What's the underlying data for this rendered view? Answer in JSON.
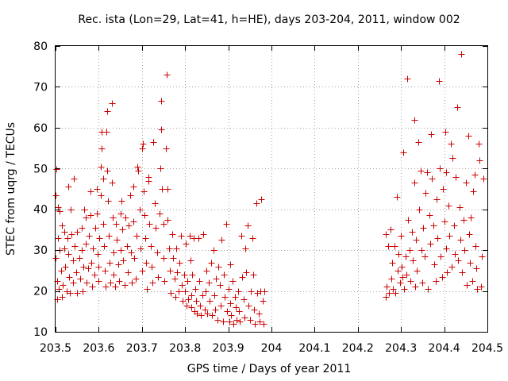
{
  "chart_data": {
    "type": "scatter",
    "title": "Rec. ista (Lon=29, Lat=41, h=HE), days 203-204, 2011, window 002",
    "xlabel": "GPS time / Days of year 2011",
    "ylabel": "STEC from uqrg / TECUs",
    "xlim": [
      203.5,
      204.5
    ],
    "ylim": [
      10,
      80
    ],
    "xticks": [
      203.5,
      203.6,
      203.7,
      203.8,
      203.9,
      204.0,
      204.1,
      204.2,
      204.3,
      204.4,
      204.5
    ],
    "xtick_labels": [
      "203.5",
      "203.6",
      "203.7",
      "203.8",
      "203.9",
      "204",
      "204.1",
      "204.2",
      "204.3",
      "204.4",
      "204.5"
    ],
    "yticks": [
      10,
      20,
      30,
      40,
      50,
      60,
      70,
      80
    ],
    "ytick_labels": [
      "10",
      "20",
      "30",
      "40",
      "50",
      "60",
      "70",
      "80"
    ],
    "grid": true,
    "marker": "+",
    "color": "#cc0000",
    "points": [
      [
        203.5,
        43.5
      ],
      [
        203.5,
        28.0
      ],
      [
        203.502,
        49.8
      ],
      [
        203.503,
        22.5
      ],
      [
        203.504,
        18.0
      ],
      [
        203.505,
        40.5
      ],
      [
        203.505,
        33.0
      ],
      [
        203.507,
        20.5
      ],
      [
        203.51,
        39.5
      ],
      [
        203.51,
        30.0
      ],
      [
        203.512,
        25.0
      ],
      [
        203.514,
        18.5
      ],
      [
        203.515,
        36.0
      ],
      [
        203.517,
        21.5
      ],
      [
        203.52,
        34.5
      ],
      [
        203.52,
        30.5
      ],
      [
        203.522,
        26.0
      ],
      [
        203.525,
        20.0
      ],
      [
        203.527,
        33.0
      ],
      [
        203.53,
        45.5
      ],
      [
        203.53,
        29.0
      ],
      [
        203.532,
        23.5
      ],
      [
        203.534,
        19.5
      ],
      [
        203.535,
        40.0
      ],
      [
        203.537,
        34.0
      ],
      [
        203.54,
        27.5
      ],
      [
        203.54,
        22.0
      ],
      [
        203.542,
        47.5
      ],
      [
        203.545,
        31.0
      ],
      [
        203.547,
        24.5
      ],
      [
        203.55,
        19.5
      ],
      [
        203.55,
        34.5
      ],
      [
        203.555,
        28.0
      ],
      [
        203.557,
        23.0
      ],
      [
        203.56,
        35.5
      ],
      [
        203.56,
        30.0
      ],
      [
        203.562,
        20.0
      ],
      [
        203.565,
        26.0
      ],
      [
        203.567,
        40.0
      ],
      [
        203.57,
        38.0
      ],
      [
        203.57,
        31.5
      ],
      [
        203.572,
        22.0
      ],
      [
        203.575,
        25.5
      ],
      [
        203.577,
        33.5
      ],
      [
        203.58,
        38.5
      ],
      [
        203.58,
        44.5
      ],
      [
        203.582,
        27.0
      ],
      [
        203.585,
        21.0
      ],
      [
        203.587,
        30.5
      ],
      [
        203.59,
        24.0
      ],
      [
        203.592,
        35.5
      ],
      [
        203.595,
        45.0
      ],
      [
        203.595,
        39.0
      ],
      [
        203.597,
        29.0
      ],
      [
        203.6,
        22.5
      ],
      [
        203.6,
        26.0
      ],
      [
        203.602,
        33.0
      ],
      [
        203.604,
        43.5
      ],
      [
        203.605,
        50.5
      ],
      [
        203.607,
        55.0
      ],
      [
        203.607,
        59.0
      ],
      [
        203.61,
        47.5
      ],
      [
        203.61,
        36.5
      ],
      [
        203.612,
        31.0
      ],
      [
        203.614,
        25.0
      ],
      [
        203.615,
        21.0
      ],
      [
        203.617,
        59.0
      ],
      [
        203.62,
        64.0
      ],
      [
        203.62,
        49.5
      ],
      [
        203.622,
        42.0
      ],
      [
        203.624,
        33.5
      ],
      [
        203.625,
        27.0
      ],
      [
        203.627,
        22.0
      ],
      [
        203.63,
        66.0
      ],
      [
        203.63,
        46.5
      ],
      [
        203.632,
        38.0
      ],
      [
        203.634,
        29.5
      ],
      [
        203.635,
        24.0
      ],
      [
        203.637,
        21.0
      ],
      [
        203.64,
        36.5
      ],
      [
        203.642,
        32.5
      ],
      [
        203.645,
        26.5
      ],
      [
        203.647,
        22.5
      ],
      [
        203.65,
        39.0
      ],
      [
        203.65,
        30.0
      ],
      [
        203.652,
        42.0
      ],
      [
        203.655,
        35.0
      ],
      [
        203.657,
        27.5
      ],
      [
        203.66,
        21.5
      ],
      [
        203.662,
        38.0
      ],
      [
        203.665,
        31.0
      ],
      [
        203.667,
        24.5
      ],
      [
        203.67,
        36.0
      ],
      [
        203.672,
        43.5
      ],
      [
        203.675,
        29.5
      ],
      [
        203.677,
        22.0
      ],
      [
        203.68,
        45.5
      ],
      [
        203.68,
        37.0
      ],
      [
        203.682,
        28.0
      ],
      [
        203.685,
        23.0
      ],
      [
        203.687,
        33.5
      ],
      [
        203.69,
        50.5
      ],
      [
        203.692,
        49.5
      ],
      [
        203.695,
        40.0
      ],
      [
        203.697,
        30.5
      ],
      [
        203.7,
        25.0
      ],
      [
        203.7,
        55.0
      ],
      [
        203.702,
        56.0
      ],
      [
        203.704,
        44.5
      ],
      [
        203.705,
        38.5
      ],
      [
        203.707,
        33.0
      ],
      [
        203.71,
        27.0
      ],
      [
        203.712,
        20.5
      ],
      [
        203.715,
        48.0
      ],
      [
        203.715,
        47.0
      ],
      [
        203.717,
        36.5
      ],
      [
        203.72,
        31.0
      ],
      [
        203.722,
        26.0
      ],
      [
        203.725,
        22.0
      ],
      [
        203.727,
        56.5
      ],
      [
        203.73,
        41.5
      ],
      [
        203.732,
        35.5
      ],
      [
        203.735,
        29.5
      ],
      [
        203.737,
        23.5
      ],
      [
        203.74,
        39.0
      ],
      [
        203.742,
        50.0
      ],
      [
        203.744,
        66.5
      ],
      [
        203.745,
        59.5
      ],
      [
        203.747,
        45.0
      ],
      [
        203.75,
        36.5
      ],
      [
        203.75,
        28.0
      ],
      [
        203.752,
        22.5
      ],
      [
        203.755,
        55.0
      ],
      [
        203.757,
        73.0
      ],
      [
        203.76,
        45.0
      ],
      [
        203.76,
        37.5
      ],
      [
        203.762,
        30.5
      ],
      [
        203.765,
        25.0
      ],
      [
        203.767,
        19.5
      ],
      [
        203.77,
        34.0
      ],
      [
        203.772,
        28.0
      ],
      [
        203.775,
        23.0
      ],
      [
        203.777,
        18.5
      ],
      [
        203.78,
        30.5
      ],
      [
        203.782,
        24.5
      ],
      [
        203.785,
        20.0
      ],
      [
        203.787,
        27.0
      ],
      [
        203.79,
        33.5
      ],
      [
        203.792,
        21.5
      ],
      [
        203.795,
        17.5
      ],
      [
        203.797,
        24.0
      ],
      [
        203.8,
        20.0
      ],
      [
        203.802,
        31.5
      ],
      [
        203.804,
        16.5
      ],
      [
        203.805,
        22.5
      ],
      [
        203.807,
        18.0
      ],
      [
        203.81,
        33.5
      ],
      [
        203.812,
        27.5
      ],
      [
        203.814,
        19.0
      ],
      [
        203.815,
        16.0
      ],
      [
        203.817,
        24.0
      ],
      [
        203.82,
        33.0
      ],
      [
        203.822,
        15.0
      ],
      [
        203.824,
        20.5
      ],
      [
        203.825,
        17.5
      ],
      [
        203.827,
        14.5
      ],
      [
        203.83,
        33.0
      ],
      [
        203.832,
        22.5
      ],
      [
        203.835,
        16.5
      ],
      [
        203.837,
        14.0
      ],
      [
        203.84,
        19.0
      ],
      [
        203.842,
        34.0
      ],
      [
        203.845,
        15.5
      ],
      [
        203.847,
        20.0
      ],
      [
        203.85,
        25.0
      ],
      [
        203.852,
        14.5
      ],
      [
        203.855,
        22.0
      ],
      [
        203.857,
        17.5
      ],
      [
        203.86,
        27.0
      ],
      [
        203.862,
        14.0
      ],
      [
        203.865,
        30.0
      ],
      [
        203.867,
        19.0
      ],
      [
        203.87,
        15.5
      ],
      [
        203.872,
        23.0
      ],
      [
        203.875,
        13.0
      ],
      [
        203.877,
        26.0
      ],
      [
        203.88,
        21.5
      ],
      [
        203.882,
        16.5
      ],
      [
        203.885,
        32.5
      ],
      [
        203.887,
        12.5
      ],
      [
        203.89,
        24.0
      ],
      [
        203.892,
        18.5
      ],
      [
        203.895,
        36.5
      ],
      [
        203.897,
        15.0
      ],
      [
        203.9,
        20.5
      ],
      [
        203.902,
        12.5
      ],
      [
        203.904,
        26.5
      ],
      [
        203.905,
        17.0
      ],
      [
        203.907,
        14.0
      ],
      [
        203.91,
        22.5
      ],
      [
        203.912,
        12.0
      ],
      [
        203.915,
        18.5
      ],
      [
        203.917,
        16.0
      ],
      [
        203.92,
        13.0
      ],
      [
        203.922,
        20.0
      ],
      [
        203.925,
        15.0
      ],
      [
        203.927,
        12.5
      ],
      [
        203.93,
        33.5
      ],
      [
        203.932,
        23.5
      ],
      [
        203.935,
        18.0
      ],
      [
        203.937,
        13.5
      ],
      [
        203.94,
        30.5
      ],
      [
        203.942,
        24.5
      ],
      [
        203.945,
        36.0
      ],
      [
        203.947,
        16.5
      ],
      [
        203.95,
        13.0
      ],
      [
        203.952,
        20.0
      ],
      [
        203.955,
        33.0
      ],
      [
        203.957,
        24.0
      ],
      [
        203.96,
        15.5
      ],
      [
        203.962,
        12.0
      ],
      [
        203.965,
        41.5
      ],
      [
        203.967,
        19.5
      ],
      [
        203.97,
        14.5
      ],
      [
        203.972,
        12.5
      ],
      [
        203.975,
        20.0
      ],
      [
        203.977,
        42.5
      ],
      [
        203.98,
        17.5
      ],
      [
        203.982,
        12.0
      ],
      [
        203.984,
        20.0
      ],
      [
        204.265,
        34.0
      ],
      [
        204.265,
        18.5
      ],
      [
        204.267,
        21.0
      ],
      [
        204.27,
        31.0
      ],
      [
        204.272,
        19.5
      ],
      [
        204.275,
        35.0
      ],
      [
        204.277,
        23.0
      ],
      [
        204.28,
        27.0
      ],
      [
        204.282,
        20.5
      ],
      [
        204.285,
        31.0
      ],
      [
        204.287,
        19.5
      ],
      [
        204.29,
        43.0
      ],
      [
        204.292,
        25.0
      ],
      [
        204.295,
        29.0
      ],
      [
        204.297,
        22.0
      ],
      [
        204.3,
        33.5
      ],
      [
        204.302,
        26.0
      ],
      [
        204.304,
        23.5
      ],
      [
        204.305,
        54.0
      ],
      [
        204.307,
        20.5
      ],
      [
        204.31,
        28.5
      ],
      [
        204.312,
        24.0
      ],
      [
        204.315,
        72.0
      ],
      [
        204.317,
        37.5
      ],
      [
        204.32,
        30.0
      ],
      [
        204.322,
        22.5
      ],
      [
        204.325,
        34.5
      ],
      [
        204.327,
        27.5
      ],
      [
        204.33,
        46.5
      ],
      [
        204.33,
        62.0
      ],
      [
        204.332,
        21.0
      ],
      [
        204.335,
        32.5
      ],
      [
        204.337,
        25.0
      ],
      [
        204.34,
        56.5
      ],
      [
        204.342,
        40.0
      ],
      [
        204.345,
        49.5
      ],
      [
        204.347,
        30.0
      ],
      [
        204.35,
        22.0
      ],
      [
        204.352,
        35.5
      ],
      [
        204.355,
        28.5
      ],
      [
        204.357,
        44.0
      ],
      [
        204.36,
        49.0
      ],
      [
        204.362,
        20.5
      ],
      [
        204.365,
        38.5
      ],
      [
        204.367,
        31.5
      ],
      [
        204.37,
        58.5
      ],
      [
        204.372,
        47.5
      ],
      [
        204.375,
        36.0
      ],
      [
        204.377,
        26.5
      ],
      [
        204.38,
        22.5
      ],
      [
        204.382,
        42.5
      ],
      [
        204.385,
        33.0
      ],
      [
        204.387,
        71.5
      ],
      [
        204.39,
        50.0
      ],
      [
        204.392,
        28.5
      ],
      [
        204.395,
        23.5
      ],
      [
        204.397,
        45.0
      ],
      [
        204.4,
        37.0
      ],
      [
        204.402,
        59.0
      ],
      [
        204.404,
        30.5
      ],
      [
        204.405,
        49.0
      ],
      [
        204.407,
        24.5
      ],
      [
        204.41,
        41.0
      ],
      [
        204.412,
        33.5
      ],
      [
        204.415,
        56.0
      ],
      [
        204.417,
        26.0
      ],
      [
        204.42,
        52.5
      ],
      [
        204.422,
        36.0
      ],
      [
        204.425,
        29.0
      ],
      [
        204.427,
        48.0
      ],
      [
        204.43,
        65.0
      ],
      [
        204.432,
        27.5
      ],
      [
        204.435,
        40.5
      ],
      [
        204.437,
        32.5
      ],
      [
        204.44,
        78.0
      ],
      [
        204.442,
        24.5
      ],
      [
        204.445,
        37.5
      ],
      [
        204.447,
        30.0
      ],
      [
        204.45,
        46.5
      ],
      [
        204.452,
        21.5
      ],
      [
        204.455,
        58.0
      ],
      [
        204.457,
        34.0
      ],
      [
        204.46,
        27.0
      ],
      [
        204.462,
        38.0
      ],
      [
        204.465,
        22.5
      ],
      [
        204.467,
        44.5
      ],
      [
        204.47,
        48.5
      ],
      [
        204.472,
        31.0
      ],
      [
        204.475,
        25.5
      ],
      [
        204.477,
        20.5
      ],
      [
        204.48,
        56.0
      ],
      [
        204.482,
        52.0
      ],
      [
        204.485,
        21.0
      ],
      [
        204.487,
        28.5
      ],
      [
        204.49,
        47.5
      ]
    ]
  }
}
